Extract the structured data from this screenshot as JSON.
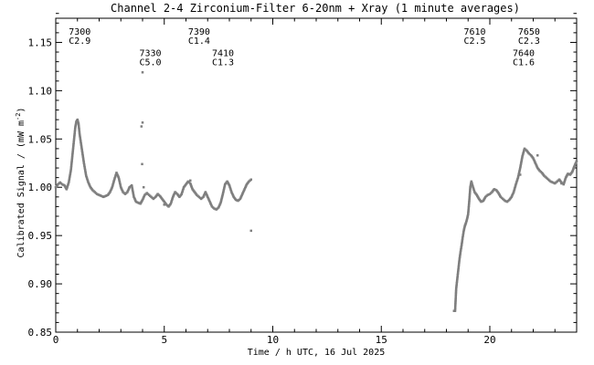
{
  "chart_data": {
    "type": "scatter",
    "title": "Channel 2-4    Zirconium-Filter    6-20nm + Xray    (1 minute averages)",
    "xlabel": "Time / h UTC, 16 Jul 2025",
    "ylabel": "Calibrated Signal / (mW m",
    "ylabel_unit_sup": "-2",
    "ylabel_close": ")",
    "xlim": [
      0,
      24
    ],
    "ylim": [
      0.85,
      1.175
    ],
    "xticks": [
      0,
      5,
      10,
      15,
      20
    ],
    "xtick_labels": [
      "0",
      "5",
      "10",
      "15",
      "20"
    ],
    "yticks": [
      0.85,
      0.9,
      0.95,
      1.0,
      1.05,
      1.1,
      1.15
    ],
    "ytick_labels": [
      "0.85",
      "0.90",
      "0.95",
      "1.00",
      "1.05",
      "1.10",
      "1.15"
    ],
    "grid": false,
    "point_color": "#7f7f7f",
    "series": [
      {
        "segments": [
          [
            [
              0.0,
              1.0
            ],
            [
              0.1,
              1.003
            ],
            [
              0.2,
              1.005
            ],
            [
              0.3,
              1.003
            ],
            [
              0.4,
              1.002
            ],
            [
              0.5,
              0.998
            ],
            [
              0.6,
              1.005
            ],
            [
              0.7,
              1.018
            ],
            [
              0.8,
              1.04
            ],
            [
              0.9,
              1.062
            ],
            [
              0.95,
              1.068
            ],
            [
              1.0,
              1.07
            ],
            [
              1.05,
              1.066
            ],
            [
              1.1,
              1.055
            ],
            [
              1.2,
              1.04
            ],
            [
              1.3,
              1.025
            ],
            [
              1.4,
              1.012
            ],
            [
              1.5,
              1.005
            ],
            [
              1.6,
              1.0
            ],
            [
              1.7,
              0.997
            ],
            [
              1.8,
              0.995
            ],
            [
              1.9,
              0.993
            ],
            [
              2.0,
              0.992
            ],
            [
              2.1,
              0.991
            ],
            [
              2.2,
              0.99
            ],
            [
              2.3,
              0.991
            ],
            [
              2.4,
              0.992
            ],
            [
              2.5,
              0.995
            ],
            [
              2.6,
              1.0
            ],
            [
              2.7,
              1.008
            ],
            [
              2.8,
              1.015
            ],
            [
              2.9,
              1.01
            ],
            [
              3.0,
              1.0
            ],
            [
              3.1,
              0.995
            ],
            [
              3.2,
              0.993
            ],
            [
              3.3,
              0.995
            ],
            [
              3.4,
              1.0
            ],
            [
              3.5,
              1.002
            ],
            [
              3.6,
              0.99
            ],
            [
              3.7,
              0.985
            ],
            [
              3.8,
              0.984
            ],
            [
              3.9,
              0.983
            ],
            [
              4.0,
              0.987
            ],
            [
              4.1,
              0.992
            ],
            [
              4.2,
              0.994
            ],
            [
              4.3,
              0.992
            ],
            [
              4.4,
              0.99
            ],
            [
              4.5,
              0.988
            ],
            [
              4.6,
              0.99
            ],
            [
              4.7,
              0.993
            ],
            [
              4.8,
              0.991
            ],
            [
              4.9,
              0.988
            ],
            [
              5.0,
              0.985
            ],
            [
              5.1,
              0.982
            ],
            [
              5.2,
              0.98
            ],
            [
              5.3,
              0.983
            ],
            [
              5.4,
              0.99
            ],
            [
              5.5,
              0.995
            ],
            [
              5.6,
              0.993
            ],
            [
              5.7,
              0.99
            ],
            [
              5.8,
              0.993
            ],
            [
              5.9,
              1.0
            ],
            [
              6.0,
              1.003
            ],
            [
              6.1,
              1.006
            ],
            [
              6.2,
              1.004
            ],
            [
              6.3,
              0.998
            ],
            [
              6.4,
              0.995
            ],
            [
              6.5,
              0.992
            ],
            [
              6.6,
              0.99
            ],
            [
              6.7,
              0.988
            ],
            [
              6.8,
              0.99
            ],
            [
              6.9,
              0.995
            ],
            [
              7.0,
              0.99
            ],
            [
              7.1,
              0.985
            ],
            [
              7.2,
              0.98
            ],
            [
              7.3,
              0.978
            ],
            [
              7.4,
              0.977
            ],
            [
              7.5,
              0.979
            ],
            [
              7.6,
              0.984
            ],
            [
              7.7,
              0.993
            ],
            [
              7.8,
              1.003
            ],
            [
              7.9,
              1.006
            ],
            [
              8.0,
              1.002
            ],
            [
              8.1,
              0.995
            ],
            [
              8.2,
              0.99
            ],
            [
              8.3,
              0.987
            ],
            [
              8.4,
              0.986
            ],
            [
              8.5,
              0.988
            ],
            [
              8.6,
              0.993
            ],
            [
              8.7,
              0.998
            ],
            [
              8.8,
              1.003
            ],
            [
              8.9,
              1.006
            ],
            [
              9.0,
              1.008
            ]
          ],
          [
            [
              18.4,
              0.872
            ],
            [
              18.45,
              0.895
            ],
            [
              18.5,
              0.905
            ],
            [
              18.55,
              0.915
            ],
            [
              18.6,
              0.925
            ],
            [
              18.65,
              0.933
            ],
            [
              18.7,
              0.94
            ],
            [
              18.75,
              0.948
            ],
            [
              18.8,
              0.955
            ],
            [
              18.85,
              0.96
            ],
            [
              18.9,
              0.963
            ],
            [
              18.95,
              0.967
            ],
            [
              19.0,
              0.972
            ],
            [
              19.05,
              0.985
            ],
            [
              19.1,
              1.0
            ],
            [
              19.15,
              1.006
            ],
            [
              19.2,
              1.002
            ],
            [
              19.3,
              0.995
            ],
            [
              19.4,
              0.992
            ],
            [
              19.5,
              0.988
            ],
            [
              19.6,
              0.985
            ],
            [
              19.7,
              0.986
            ],
            [
              19.8,
              0.99
            ],
            [
              19.9,
              0.992
            ],
            [
              20.0,
              0.993
            ],
            [
              20.1,
              0.995
            ],
            [
              20.2,
              0.998
            ],
            [
              20.3,
              0.997
            ],
            [
              20.4,
              0.994
            ],
            [
              20.5,
              0.99
            ],
            [
              20.6,
              0.988
            ],
            [
              20.7,
              0.986
            ],
            [
              20.8,
              0.985
            ],
            [
              20.9,
              0.987
            ],
            [
              21.0,
              0.99
            ],
            [
              21.1,
              0.995
            ],
            [
              21.2,
              1.003
            ],
            [
              21.3,
              1.01
            ],
            [
              21.4,
              1.02
            ],
            [
              21.5,
              1.032
            ],
            [
              21.6,
              1.04
            ],
            [
              21.7,
              1.038
            ],
            [
              21.8,
              1.035
            ],
            [
              21.9,
              1.033
            ],
            [
              22.0,
              1.03
            ],
            [
              22.1,
              1.025
            ],
            [
              22.2,
              1.02
            ],
            [
              22.3,
              1.017
            ],
            [
              22.4,
              1.015
            ],
            [
              22.5,
              1.012
            ],
            [
              22.6,
              1.01
            ],
            [
              22.7,
              1.008
            ],
            [
              22.8,
              1.006
            ],
            [
              22.9,
              1.005
            ],
            [
              23.0,
              1.004
            ],
            [
              23.1,
              1.006
            ],
            [
              23.2,
              1.008
            ],
            [
              23.3,
              1.005
            ],
            [
              23.4,
              1.003
            ],
            [
              23.5,
              1.01
            ],
            [
              23.6,
              1.014
            ],
            [
              23.7,
              1.013
            ],
            [
              23.8,
              1.016
            ],
            [
              23.9,
              1.022
            ],
            [
              24.0,
              1.027
            ]
          ]
        ],
        "outliers": [
          [
            4.0,
            1.119
          ],
          [
            3.95,
            1.063
          ],
          [
            4.0,
            1.067
          ],
          [
            3.98,
            1.024
          ],
          [
            4.05,
            1.0
          ],
          [
            5.0,
            0.982
          ],
          [
            6.2,
            1.007
          ],
          [
            9.0,
            0.955
          ],
          [
            18.35,
            0.872
          ],
          [
            21.4,
            1.013
          ],
          [
            22.2,
            1.033
          ],
          [
            23.3,
            1.004
          ]
        ]
      }
    ],
    "annotations": [
      {
        "x": 0.6,
        "y": 1.158,
        "lines": [
          "7300",
          "C2.9"
        ]
      },
      {
        "x": 3.85,
        "y": 1.136,
        "lines": [
          "7330",
          "C5.0"
        ]
      },
      {
        "x": 6.1,
        "y": 1.158,
        "lines": [
          "7390",
          "C1.4"
        ]
      },
      {
        "x": 7.2,
        "y": 1.136,
        "lines": [
          "7410",
          "C1.3"
        ]
      },
      {
        "x": 18.8,
        "y": 1.158,
        "lines": [
          "7610",
          "C2.5"
        ]
      },
      {
        "x": 21.3,
        "y": 1.158,
        "lines": [
          "7650",
          "C2.3"
        ]
      },
      {
        "x": 21.05,
        "y": 1.136,
        "lines": [
          "7640",
          "C1.6"
        ]
      }
    ]
  }
}
